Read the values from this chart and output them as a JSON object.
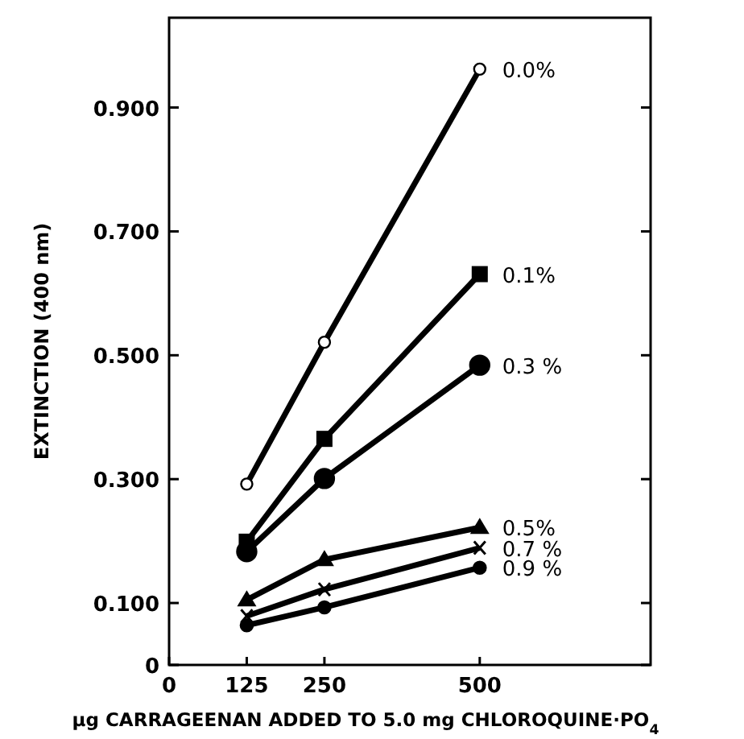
{
  "chart_data": {
    "type": "line",
    "xlabel": "µg CARRAGEENAN ADDED TO 5.0 mg CHLOROQUINE·PO$_{4}$",
    "ylabel": "EXTINCTION (400 nm)",
    "x": [
      125,
      250,
      500
    ],
    "series": [
      {
        "name": "0.0%",
        "color": "#000000",
        "values": [
          0.292,
          0.521,
          0.962
        ],
        "marker": "circle"
      },
      {
        "name": "0.1%",
        "color": "#000000",
        "values": [
          0.199,
          0.365,
          0.631
        ],
        "marker": "square"
      },
      {
        "name": "0.3 %",
        "color": "#000000",
        "values": [
          0.183,
          0.301,
          0.484
        ],
        "marker": "circle"
      },
      {
        "name": "0.5%",
        "color": "#000000",
        "values": [
          0.105,
          0.17,
          0.222
        ],
        "marker": "triangle"
      },
      {
        "name": "0.7 %",
        "color": "#000000",
        "values": [
          0.079,
          0.122,
          0.189
        ],
        "marker": "cross"
      },
      {
        "name": "0.9 %",
        "color": "#000000",
        "values": [
          0.064,
          0.093,
          0.157
        ],
        "marker": "circle"
      }
    ],
    "xlim": [
      0,
      775
    ],
    "xticks": [
      0,
      125,
      250,
      500
    ],
    "ylim": [
      0,
      1.045
    ],
    "yticks": [
      0,
      {
        "value": 0.1,
        "label": "0.100"
      },
      {
        "value": 0.3,
        "label": "0.300"
      },
      {
        "value": 0.5,
        "label": "0.500"
      },
      {
        "value": 0.7,
        "label": "0.700"
      },
      {
        "value": 0.9,
        "label": "0.900"
      }
    ],
    "grid": false,
    "line_style": "solid"
  }
}
